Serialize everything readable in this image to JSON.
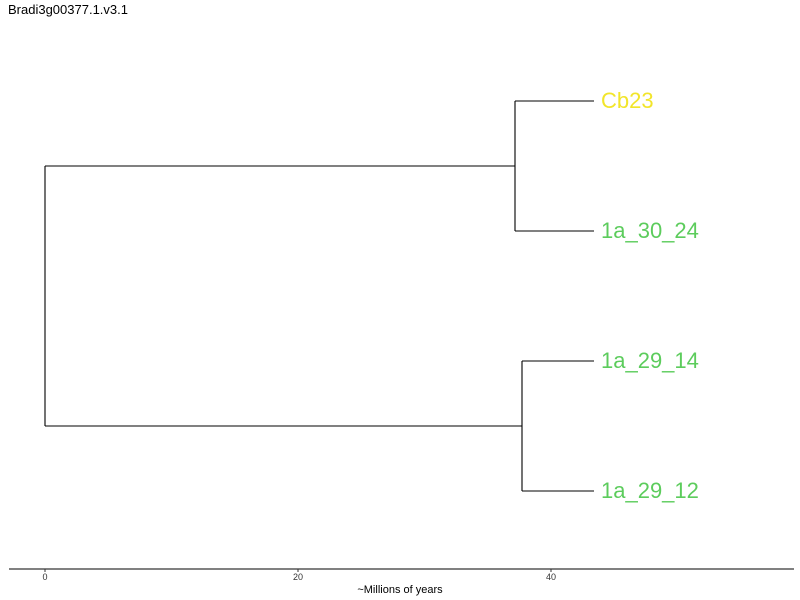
{
  "title": "Bradi3g00377.1.v3.1",
  "colors": {
    "yellow": "#f2e52a",
    "green": "#5ccc5c",
    "line": "#000000"
  },
  "tree": {
    "tips": [
      {
        "label": "Cb23",
        "color": "#f2e52a"
      },
      {
        "label": "1a_30_24",
        "color": "#5ccc5c"
      },
      {
        "label": "1a_29_14",
        "color": "#5ccc5c"
      },
      {
        "label": "1a_29_12",
        "color": "#5ccc5c"
      }
    ]
  },
  "axis": {
    "label": "~Millions of years",
    "ticks": [
      "0",
      "20",
      "40"
    ]
  }
}
